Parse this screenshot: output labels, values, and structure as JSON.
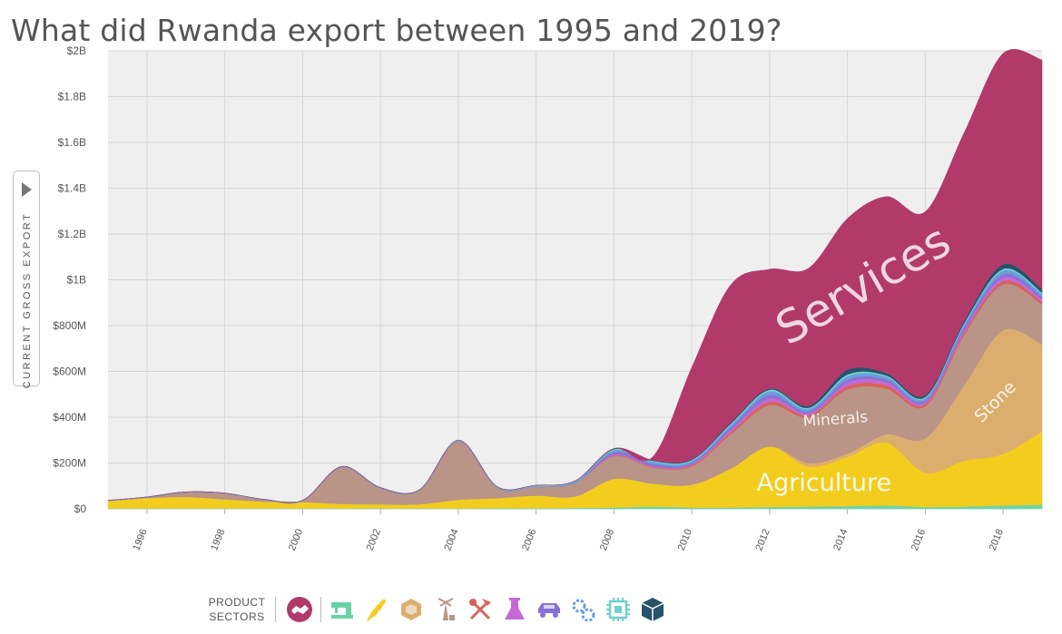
{
  "title": "What did Rwanda export between 1995 and 2019?",
  "y_axis_label": "CURRENT GROSS EXPORT",
  "legend": {
    "label": "PRODUCT\nSECTORS",
    "sectors": [
      {
        "name": "services-icon",
        "color": "#b23a6b"
      },
      {
        "name": "textiles-icon",
        "color": "#6ad3a5"
      },
      {
        "name": "agriculture-icon",
        "color": "#f2cd1e"
      },
      {
        "name": "stone-icon",
        "color": "#dcae6e"
      },
      {
        "name": "minerals-icon",
        "color": "#b99487"
      },
      {
        "name": "metals-icon",
        "color": "#d8635a"
      },
      {
        "name": "chemicals-icon",
        "color": "#c36ad5"
      },
      {
        "name": "vehicles-icon",
        "color": "#8872d6"
      },
      {
        "name": "machinery-icon",
        "color": "#6a9fd8"
      },
      {
        "name": "electronics-icon",
        "color": "#6fd0cf"
      },
      {
        "name": "other-icon",
        "color": "#26536b"
      }
    ]
  },
  "chart_data": {
    "type": "area",
    "stacked": true,
    "x": [
      1995,
      1996,
      1997,
      1998,
      1999,
      2000,
      2001,
      2002,
      2003,
      2004,
      2005,
      2006,
      2007,
      2008,
      2009,
      2010,
      2011,
      2012,
      2013,
      2014,
      2015,
      2016,
      2017,
      2018,
      2019
    ],
    "xlim": [
      1995,
      2019
    ],
    "ylim": [
      0,
      2000000000
    ],
    "y_ticks": [
      0,
      200000000,
      400000000,
      600000000,
      800000000,
      1000000000,
      1200000000,
      1400000000,
      1600000000,
      1800000000,
      2000000000
    ],
    "y_tick_labels": [
      "$0",
      "$200M",
      "$400M",
      "$600M",
      "$800M",
      "$1B",
      "$1.2B",
      "$1.4B",
      "$1.6B",
      "$1.8B",
      "$2B"
    ],
    "x_ticks": [
      1996,
      1998,
      2000,
      2002,
      2004,
      2006,
      2008,
      2010,
      2012,
      2014,
      2016,
      2018
    ],
    "x_tick_labels": [
      "1996",
      "1998",
      "2000",
      "2002",
      "2004",
      "2006",
      "2008",
      "2010",
      "2012",
      "2014",
      "2016",
      "2018"
    ],
    "grid": true,
    "series": [
      {
        "name": "Textiles",
        "color": "#6ad3a5",
        "values": [
          2000000,
          2000000,
          2000000,
          2000000,
          2000000,
          2000000,
          2000000,
          2000000,
          2000000,
          2000000,
          3000000,
          3000000,
          4000000,
          6000000,
          10000000,
          6000000,
          6000000,
          8000000,
          10000000,
          12000000,
          15000000,
          8000000,
          10000000,
          15000000,
          18000000
        ]
      },
      {
        "name": "Agriculture",
        "color": "#f2cd1e",
        "values": [
          33000000,
          45000000,
          50000000,
          40000000,
          30000000,
          28000000,
          20000000,
          18000000,
          18000000,
          38000000,
          44000000,
          55000000,
          50000000,
          125000000,
          100000000,
          100000000,
          170000000,
          265000000,
          175000000,
          215000000,
          275000000,
          150000000,
          200000000,
          225000000,
          320000000
        ]
      },
      {
        "name": "Stone",
        "color": "#dcae6e",
        "values": [
          0,
          0,
          0,
          0,
          0,
          0,
          0,
          0,
          0,
          0,
          0,
          0,
          0,
          0,
          0,
          0,
          0,
          0,
          15000000,
          15000000,
          35000000,
          150000000,
          330000000,
          540000000,
          380000000
        ]
      },
      {
        "name": "Minerals",
        "color": "#b99487",
        "values": [
          0,
          3000000,
          20000000,
          25000000,
          8000000,
          5000000,
          160000000,
          70000000,
          60000000,
          255000000,
          45000000,
          40000000,
          60000000,
          100000000,
          70000000,
          80000000,
          150000000,
          180000000,
          200000000,
          280000000,
          200000000,
          140000000,
          220000000,
          200000000,
          175000000
        ]
      },
      {
        "name": "Metals",
        "color": "#d8635a",
        "values": [
          0,
          0,
          0,
          0,
          0,
          0,
          0,
          0,
          0,
          0,
          0,
          0,
          0,
          3000000,
          3000000,
          5000000,
          10000000,
          15000000,
          10000000,
          15000000,
          15000000,
          10000000,
          12000000,
          15000000,
          12000000
        ]
      },
      {
        "name": "Chemicals",
        "color": "#c36ad5",
        "values": [
          0,
          0,
          0,
          0,
          0,
          0,
          0,
          0,
          0,
          0,
          0,
          0,
          0,
          5000000,
          5000000,
          5000000,
          10000000,
          15000000,
          8000000,
          15000000,
          15000000,
          8000000,
          12000000,
          15000000,
          12000000
        ]
      },
      {
        "name": "Vehicles",
        "color": "#8872d6",
        "values": [
          0,
          0,
          0,
          0,
          0,
          0,
          0,
          0,
          0,
          0,
          0,
          0,
          0,
          8000000,
          8000000,
          5000000,
          10000000,
          15000000,
          8000000,
          12000000,
          10000000,
          8000000,
          10000000,
          15000000,
          10000000
        ]
      },
      {
        "name": "Machinery",
        "color": "#6a9fd8",
        "values": [
          1000000,
          1000000,
          1000000,
          1000000,
          1000000,
          1000000,
          2000000,
          2000000,
          2000000,
          3000000,
          3000000,
          3000000,
          5000000,
          10000000,
          10000000,
          8000000,
          10000000,
          15000000,
          10000000,
          15000000,
          12000000,
          10000000,
          12000000,
          15000000,
          12000000
        ]
      },
      {
        "name": "Electronics",
        "color": "#6fd0cf",
        "values": [
          1000000,
          1000000,
          1000000,
          1000000,
          1000000,
          1000000,
          1000000,
          1000000,
          1000000,
          2000000,
          2000000,
          2000000,
          3000000,
          4000000,
          4000000,
          5000000,
          6000000,
          8000000,
          6000000,
          8000000,
          6000000,
          5000000,
          6000000,
          8000000,
          6000000
        ]
      },
      {
        "name": "Other",
        "color": "#26536b",
        "values": [
          0,
          0,
          0,
          0,
          0,
          0,
          0,
          0,
          0,
          0,
          0,
          0,
          0,
          2000000,
          2000000,
          3000000,
          5000000,
          5000000,
          8000000,
          20000000,
          10000000,
          8000000,
          10000000,
          20000000,
          15000000
        ]
      },
      {
        "name": "Services",
        "color": "#b23a6b",
        "values": [
          0,
          0,
          0,
          0,
          0,
          0,
          0,
          0,
          0,
          0,
          0,
          0,
          0,
          0,
          15000000,
          400000000,
          600000000,
          520000000,
          600000000,
          660000000,
          770000000,
          800000000,
          820000000,
          920000000,
          1000000000
        ]
      }
    ],
    "annotations": [
      {
        "text": "Services",
        "x": 2014.6,
        "y": 920000000,
        "rotate": -30,
        "size": 50,
        "color": "rgba(255,255,255,0.8)"
      },
      {
        "text": "Minerals",
        "x": 2013.7,
        "y": 370000000,
        "rotate": -4,
        "size": 17,
        "color": "rgba(255,255,255,0.85)"
      },
      {
        "text": "Stone",
        "x": 2017.9,
        "y": 450000000,
        "rotate": -45,
        "size": 19,
        "color": "rgba(255,255,255,0.85)"
      },
      {
        "text": "Agriculture",
        "x": 2013.4,
        "y": 80000000,
        "rotate": 0,
        "size": 27,
        "color": "rgba(255,255,255,0.9)"
      }
    ]
  }
}
